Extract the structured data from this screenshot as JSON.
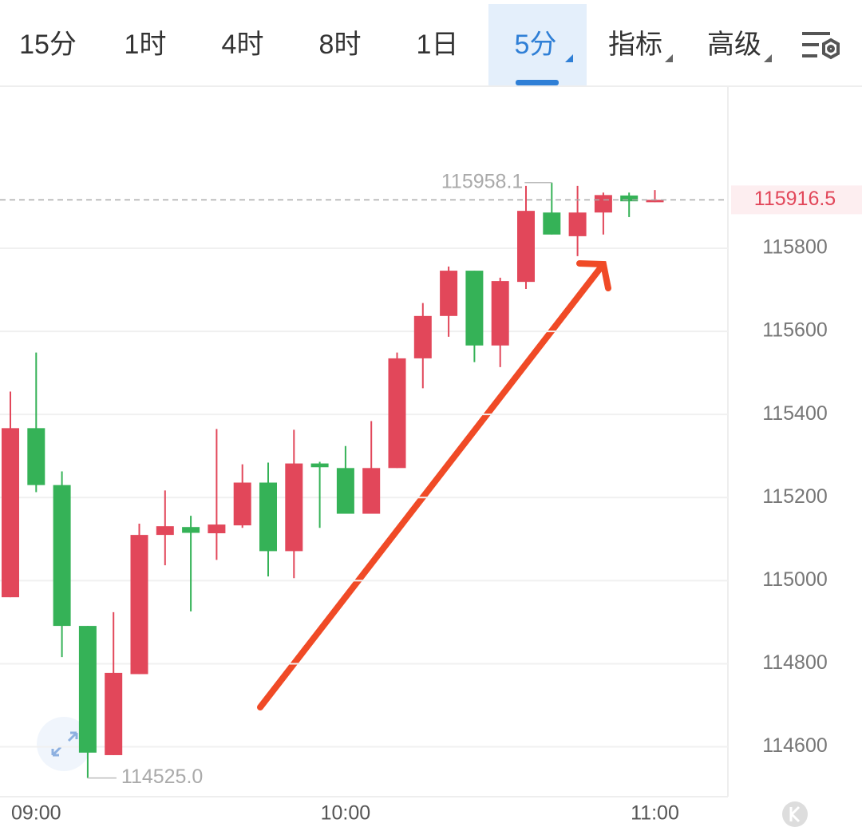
{
  "tabs": [
    "15分",
    "1时",
    "4时",
    "8时",
    "1日",
    "5分",
    "指标",
    "高级"
  ],
  "active_tab": 5,
  "chart_data": {
    "type": "candlestick",
    "categories": [
      null,
      "09:00",
      null,
      null,
      null,
      null,
      null,
      null,
      null,
      null,
      null,
      null,
      null,
      "10:00",
      null,
      null,
      null,
      null,
      null,
      null,
      null,
      null,
      null,
      null,
      null,
      "11:00"
    ],
    "open": [
      114960,
      115367,
      115230,
      114891,
      114580,
      114775,
      115110,
      115129,
      115114,
      115133,
      115236,
      115071,
      115282,
      115271,
      115161,
      115271,
      115535,
      115637,
      115746,
      115566,
      115719,
      115886,
      115829,
      115886,
      115927,
      115911
    ],
    "high": [
      115455,
      115549,
      115263,
      114891,
      114924,
      115137,
      115217,
      115156,
      115365,
      115280,
      115284,
      115363,
      115286,
      115324,
      115384,
      115549,
      115668,
      115756,
      115746,
      115729,
      115950,
      115958.1,
      115950,
      115934,
      115934,
      115940
    ],
    "low": [
      114960,
      115213,
      114816,
      114525,
      114580,
      114775,
      115037,
      114926,
      115050,
      115127,
      115010,
      115006,
      115127,
      115161,
      115161,
      115271,
      115463,
      115587,
      115526,
      115514,
      115702,
      115833,
      115781,
      115833,
      115875,
      115911
    ],
    "close": [
      115367,
      115230,
      114891,
      114586,
      114778,
      115110,
      115131,
      115115,
      115135,
      115236,
      115071,
      115282,
      115273,
      115161,
      115271,
      115535,
      115637,
      115746,
      115566,
      115721,
      115890,
      115833,
      115886,
      115928,
      115913,
      115916.5
    ],
    "up_color": "#e2475a",
    "down_color": "#35b257",
    "ylim": [
      114480,
      116190
    ],
    "yticks": [
      114600,
      114800,
      115000,
      115200,
      115400,
      115600,
      115800
    ],
    "grid": true,
    "max_label": "115958.1",
    "min_label": "114525.0",
    "last_price_label": "115916.5"
  }
}
